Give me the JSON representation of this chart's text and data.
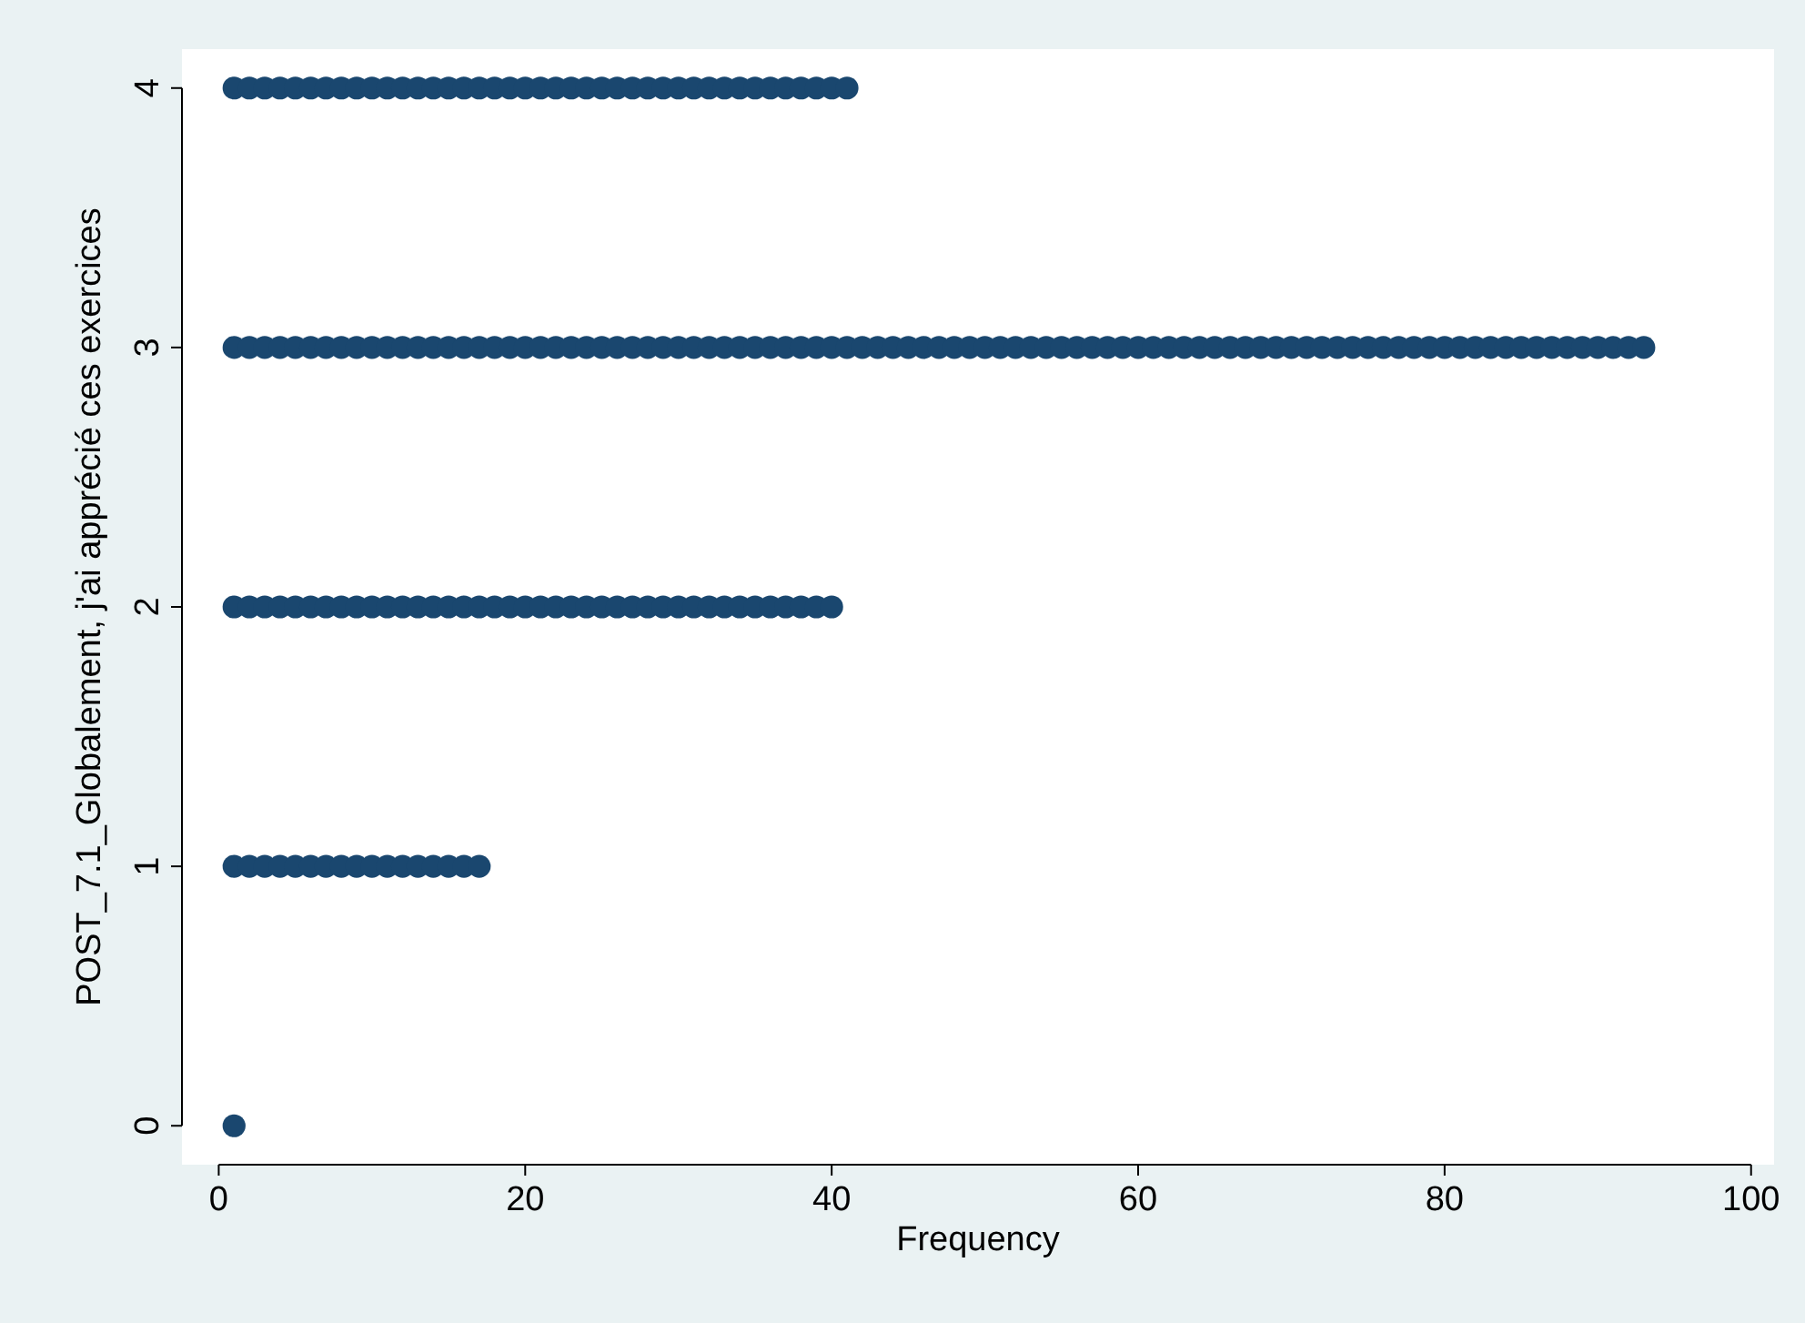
{
  "chart_data": {
    "type": "scatter",
    "xlabel": "Frequency",
    "ylabel": "POST_7.1_Globalement, j'ai apprécié ces exercices",
    "xlim": [
      -2.4,
      101.5
    ],
    "ylim": [
      -0.15,
      4.15
    ],
    "xticks": [
      0,
      20,
      40,
      60,
      80,
      100
    ],
    "yticks": [
      0,
      1,
      2,
      3,
      4
    ],
    "marker": "circle",
    "series": [
      {
        "color": "#1a476f",
        "x": [
          1
        ],
        "values": [
          0
        ]
      },
      {
        "color": "#1a476f",
        "x": [
          1,
          2,
          3,
          4,
          5,
          6,
          7,
          8,
          9,
          10,
          11,
          12,
          13,
          14,
          15,
          16,
          17
        ],
        "values": [
          1,
          1,
          1,
          1,
          1,
          1,
          1,
          1,
          1,
          1,
          1,
          1,
          1,
          1,
          1,
          1,
          1
        ]
      },
      {
        "color": "#1a476f",
        "x": [
          1,
          2,
          3,
          4,
          5,
          6,
          7,
          8,
          9,
          10,
          11,
          12,
          13,
          14,
          15,
          16,
          17,
          18,
          19,
          20,
          21,
          22,
          23,
          24,
          25,
          26,
          27,
          28,
          29,
          30,
          31,
          32,
          33,
          34,
          35,
          36,
          37,
          38,
          39,
          40
        ],
        "values": [
          2,
          2,
          2,
          2,
          2,
          2,
          2,
          2,
          2,
          2,
          2,
          2,
          2,
          2,
          2,
          2,
          2,
          2,
          2,
          2,
          2,
          2,
          2,
          2,
          2,
          2,
          2,
          2,
          2,
          2,
          2,
          2,
          2,
          2,
          2,
          2,
          2,
          2,
          2,
          2
        ]
      },
      {
        "color": "#1a476f",
        "x": [
          1,
          2,
          3,
          4,
          5,
          6,
          7,
          8,
          9,
          10,
          11,
          12,
          13,
          14,
          15,
          16,
          17,
          18,
          19,
          20,
          21,
          22,
          23,
          24,
          25,
          26,
          27,
          28,
          29,
          30,
          31,
          32,
          33,
          34,
          35,
          36,
          37,
          38,
          39,
          40,
          41,
          42,
          43,
          44,
          45,
          46,
          47,
          48,
          49,
          50,
          51,
          52,
          53,
          54,
          55,
          56,
          57,
          58,
          59,
          60,
          61,
          62,
          63,
          64,
          65,
          66,
          67,
          68,
          69,
          70,
          71,
          72,
          73,
          74,
          75,
          76,
          77,
          78,
          79,
          80,
          81,
          82,
          83,
          84,
          85,
          86,
          87,
          88,
          89,
          90,
          91,
          92,
          93
        ],
        "values": [
          3,
          3,
          3,
          3,
          3,
          3,
          3,
          3,
          3,
          3,
          3,
          3,
          3,
          3,
          3,
          3,
          3,
          3,
          3,
          3,
          3,
          3,
          3,
          3,
          3,
          3,
          3,
          3,
          3,
          3,
          3,
          3,
          3,
          3,
          3,
          3,
          3,
          3,
          3,
          3,
          3,
          3,
          3,
          3,
          3,
          3,
          3,
          3,
          3,
          3,
          3,
          3,
          3,
          3,
          3,
          3,
          3,
          3,
          3,
          3,
          3,
          3,
          3,
          3,
          3,
          3,
          3,
          3,
          3,
          3,
          3,
          3,
          3,
          3,
          3,
          3,
          3,
          3,
          3,
          3,
          3,
          3,
          3,
          3,
          3,
          3,
          3,
          3,
          3,
          3,
          3,
          3,
          3
        ]
      },
      {
        "color": "#1a476f",
        "x": [
          1,
          2,
          3,
          4,
          5,
          6,
          7,
          8,
          9,
          10,
          11,
          12,
          13,
          14,
          15,
          16,
          17,
          18,
          19,
          20,
          21,
          22,
          23,
          24,
          25,
          26,
          27,
          28,
          29,
          30,
          31,
          32,
          33,
          34,
          35,
          36,
          37,
          38,
          39,
          40,
          41
        ],
        "values": [
          4,
          4,
          4,
          4,
          4,
          4,
          4,
          4,
          4,
          4,
          4,
          4,
          4,
          4,
          4,
          4,
          4,
          4,
          4,
          4,
          4,
          4,
          4,
          4,
          4,
          4,
          4,
          4,
          4,
          4,
          4,
          4,
          4,
          4,
          4,
          4,
          4,
          4,
          4,
          4,
          4
        ]
      }
    ]
  }
}
